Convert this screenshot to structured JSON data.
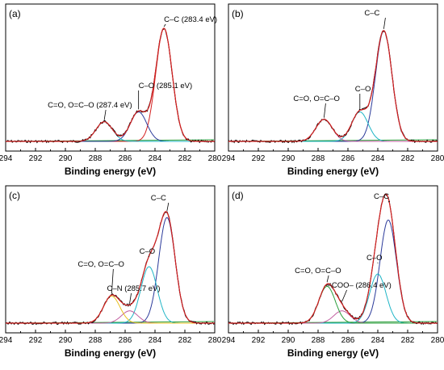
{
  "chart_data": [
    {
      "type": "line",
      "panel_label": "(a)",
      "xlabel": "Binding energy (eV)",
      "ylabel": "",
      "xlim": [
        294,
        280
      ],
      "x_reversed": true,
      "xticks": [
        "294",
        "292",
        "290",
        "288",
        "286",
        "284",
        "282",
        "280"
      ],
      "annotations": [
        {
          "text": "C–C (283.4 eV)",
          "x": 283.4
        },
        {
          "text": "C–O (285.1 eV)",
          "x": 285.1
        },
        {
          "text": "C=O, O=C–O (287.4 eV)",
          "x": 287.4
        }
      ],
      "series": [
        {
          "role": "experimental",
          "color": "#000000"
        },
        {
          "role": "envelope fit",
          "color": "#d42020"
        },
        {
          "role": "baseline",
          "color": "#2a9d3a"
        },
        {
          "role": "peak",
          "center": 283.4,
          "height": 0.92,
          "color": "#d42020"
        },
        {
          "role": "peak",
          "center": 285.1,
          "height": 0.24,
          "color": "#2b3a9a"
        },
        {
          "role": "peak",
          "center": 287.4,
          "height": 0.16,
          "color": "#1fb5c6"
        }
      ]
    },
    {
      "type": "line",
      "panel_label": "(b)",
      "xlabel": "Binding energy (eV)",
      "ylabel": "",
      "xlim": [
        294,
        280
      ],
      "x_reversed": true,
      "xticks": [
        "294",
        "292",
        "290",
        "288",
        "286",
        "284",
        "282",
        "280"
      ],
      "annotations": [
        {
          "text": "C–C",
          "x": 283.6
        },
        {
          "text": "C–O",
          "x": 285.2
        },
        {
          "text": "C=O, O=C–O",
          "x": 287.6
        }
      ],
      "series": [
        {
          "role": "experimental",
          "color": "#000000"
        },
        {
          "role": "envelope fit",
          "color": "#d42020"
        },
        {
          "role": "baseline",
          "color": "#2a9d3a"
        },
        {
          "role": "peak",
          "center": 283.6,
          "height": 0.9,
          "color": "#2b3a9a"
        },
        {
          "role": "peak",
          "center": 285.2,
          "height": 0.24,
          "color": "#1fb5c6"
        },
        {
          "role": "peak",
          "center": 287.6,
          "height": 0.18,
          "color": "#c15fa0"
        }
      ]
    },
    {
      "type": "line",
      "panel_label": "(c)",
      "xlabel": "Binding energy (eV)",
      "ylabel": "",
      "xlim": [
        294,
        280
      ],
      "x_reversed": true,
      "xticks": [
        "294",
        "292",
        "290",
        "288",
        "286",
        "284",
        "282",
        "280"
      ],
      "annotations": [
        {
          "text": "C–C",
          "x": 283.2
        },
        {
          "text": "C–O",
          "x": 284.4
        },
        {
          "text": "C–N (285.7 eV)",
          "x": 285.7
        },
        {
          "text": "C=O, O=C–O",
          "x": 286.9
        }
      ],
      "series": [
        {
          "role": "experimental",
          "color": "#000000"
        },
        {
          "role": "envelope fit",
          "color": "#d42020"
        },
        {
          "role": "baseline",
          "color": "#2a9d3a"
        },
        {
          "role": "peak",
          "center": 283.2,
          "height": 0.86,
          "color": "#2b3a9a"
        },
        {
          "role": "peak",
          "center": 284.4,
          "height": 0.46,
          "color": "#1fb5c6"
        },
        {
          "role": "peak",
          "center": 285.7,
          "height": 0.1,
          "color": "#c15fa0"
        },
        {
          "role": "peak",
          "center": 286.9,
          "height": 0.22,
          "color": "#e8c020"
        }
      ]
    },
    {
      "type": "line",
      "panel_label": "(d)",
      "xlabel": "Binding energy (eV)",
      "ylabel": "",
      "xlim": [
        294,
        280
      ],
      "x_reversed": true,
      "xticks": [
        "294",
        "292",
        "290",
        "288",
        "286",
        "284",
        "282",
        "280"
      ],
      "annotations": [
        {
          "text": "C–C",
          "x": 283.3
        },
        {
          "text": "C–O",
          "x": 284.0
        },
        {
          "text": "–COO– (286.4 eV)",
          "x": 286.4
        },
        {
          "text": "C=O, O=C–O",
          "x": 287.4
        }
      ],
      "series": [
        {
          "role": "experimental",
          "color": "#000000"
        },
        {
          "role": "envelope fit",
          "color": "#d42020"
        },
        {
          "role": "baseline",
          "color": "#2a9d3a"
        },
        {
          "role": "peak",
          "center": 283.3,
          "height": 0.84,
          "color": "#2b3a9a"
        },
        {
          "role": "peak",
          "center": 284.0,
          "height": 0.4,
          "color": "#1fb5c6"
        },
        {
          "role": "peak",
          "center": 286.4,
          "height": 0.1,
          "color": "#c15fa0"
        },
        {
          "role": "peak",
          "center": 287.4,
          "height": 0.3,
          "color": "#2a9d3a"
        }
      ]
    }
  ]
}
